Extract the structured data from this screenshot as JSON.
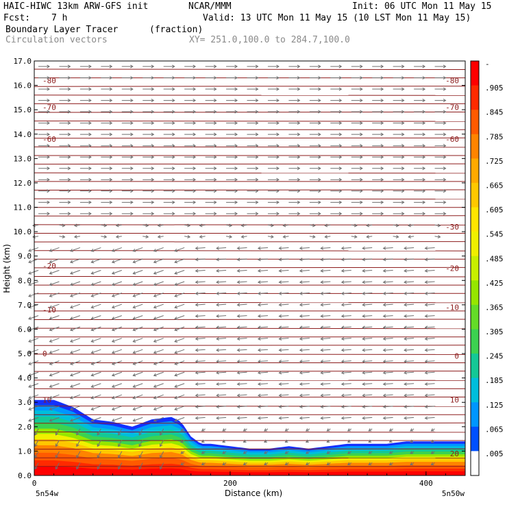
{
  "header": {
    "model": "HAIC-HIWC 13km ARW-GFS init",
    "org": "NCAR/MMM",
    "init": "Init: 06 UTC Mon 11 May 15",
    "fcst_label": "Fcst:",
    "fcst_value": "7 h",
    "valid": "Valid: 13 UTC Mon 11 May 15 (10 LST Mon 11 May 15)",
    "field": "Boundary Layer Tracer",
    "units": "(fraction)",
    "vectors": "Circulation vectors",
    "xy": "XY= 251.0,100.0 to 284.7,100.0"
  },
  "chart_data": {
    "type": "heatmap",
    "xlabel": "Distance (km)",
    "ylabel": "Height (km)",
    "xlim": [
      0,
      440
    ],
    "ylim": [
      0,
      17
    ],
    "x_ticks": [
      "0",
      "200",
      "400"
    ],
    "x_tick_values": [
      0,
      200,
      400
    ],
    "y_ticks": [
      "0.0",
      "1.0",
      "2.0",
      "3.0",
      "4.0",
      "5.0",
      "6.0",
      "7.0",
      "8.0",
      "9.0",
      "10.0",
      "11.0",
      "12.0",
      "13.0",
      "14.0",
      "15.0",
      "16.0",
      "17.0"
    ],
    "left_endpoint": "5n54w",
    "right_endpoint": "5n50w",
    "colorbar": {
      "labels": [
        "-",
        ".905",
        ".845",
        ".785",
        ".725",
        ".665",
        ".605",
        ".545",
        ".485",
        ".425",
        ".365",
        ".305",
        ".245",
        ".185",
        ".125",
        ".065",
        ".005"
      ],
      "colors": [
        "#ff0000",
        "#ff2a00",
        "#ff5a00",
        "#ff8400",
        "#ffaa00",
        "#ffc800",
        "#ffe600",
        "#f0f000",
        "#c8f000",
        "#96e600",
        "#64dc28",
        "#3cd250",
        "#14c896",
        "#00bedc",
        "#0096ff",
        "#0050ff",
        "#ffffff"
      ]
    },
    "boundary_layer_top_km": {
      "x": [
        0,
        20,
        40,
        60,
        80,
        100,
        120,
        140,
        150,
        160,
        170,
        180,
        200,
        220,
        240,
        260,
        280,
        300,
        320,
        340,
        360,
        380,
        400,
        420,
        440
      ],
      "y": [
        3.1,
        3.1,
        2.8,
        2.3,
        2.2,
        2.0,
        2.3,
        2.4,
        2.2,
        1.6,
        1.3,
        1.3,
        1.2,
        1.1,
        1.1,
        1.2,
        1.1,
        1.2,
        1.3,
        1.3,
        1.3,
        1.4,
        1.4,
        1.4,
        1.4
      ]
    },
    "contours": {
      "name": "temperature",
      "labels": [
        "-80",
        "-70",
        "-60",
        "-30",
        "-20",
        "-10",
        "0",
        "10",
        "20"
      ],
      "levels": [
        {
          "label": "-80",
          "y_left": 16.2,
          "y_right": 16.2,
          "show_left": true,
          "show_right": true
        },
        {
          "label": "-70",
          "y_left": 15.1,
          "y_right": 15.1,
          "show_left": true,
          "show_right": true
        },
        {
          "label": "-60",
          "y_left": 13.8,
          "y_right": 13.8,
          "show_left": true,
          "show_right": true
        },
        {
          "label": "-30",
          "y_left": 10.2,
          "y_right": 10.2,
          "show_left": false,
          "show_right": true
        },
        {
          "label": "-20",
          "y_left": 8.6,
          "y_right": 8.5,
          "show_left": true,
          "show_right": true
        },
        {
          "label": "-10",
          "y_left": 6.8,
          "y_right": 6.9,
          "show_left": true,
          "show_right": true
        },
        {
          "label": "0",
          "y_left": 5.0,
          "y_right": 4.9,
          "show_left": true,
          "show_right": true
        },
        {
          "label": "10",
          "y_left": 3.1,
          "y_right": 3.1,
          "show_left": true,
          "show_right": true
        },
        {
          "label": "20",
          "y_left": 0.9,
          "y_right": 0.9,
          "show_left": false,
          "show_right": true
        }
      ]
    }
  }
}
